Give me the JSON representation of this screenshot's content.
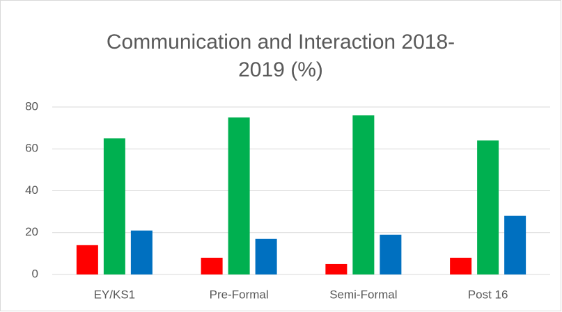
{
  "chart_data": {
    "type": "bar",
    "title": "Communication and Interaction 2018-2019 (%)",
    "categories": [
      "EY/KS1",
      "Pre-Formal",
      "Semi-Formal",
      "Post 16"
    ],
    "series": [
      {
        "color": "#ff0000",
        "values": [
          14,
          8,
          5,
          8
        ]
      },
      {
        "color": "#00b050",
        "values": [
          65,
          75,
          76,
          64
        ]
      },
      {
        "color": "#0070c0",
        "values": [
          21,
          17,
          19,
          28
        ]
      }
    ],
    "ylim": [
      0,
      80
    ],
    "yticks": [
      0,
      20,
      40,
      60,
      80
    ],
    "grid": true
  }
}
